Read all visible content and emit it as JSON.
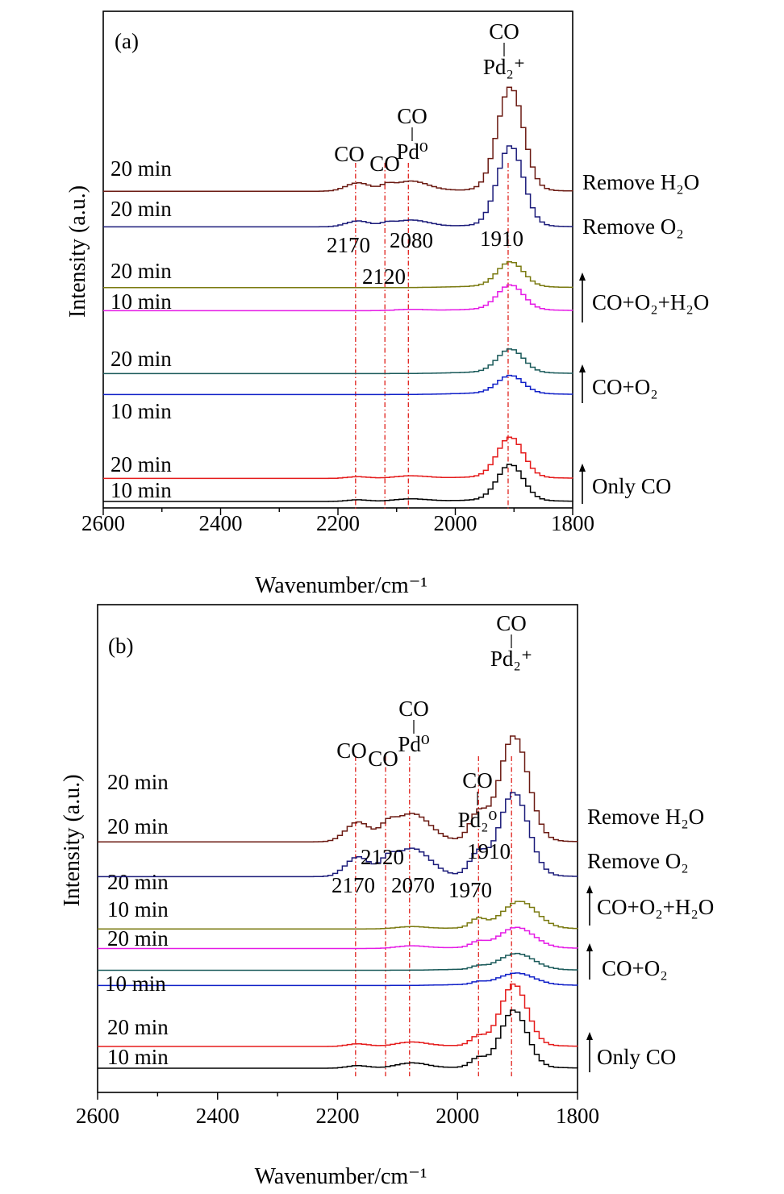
{
  "colors": {
    "axis": "#000000",
    "guide": "#e0201b",
    "min20_top": "#6b1a12",
    "min20_second": "#1b1b7a",
    "min20_cooh": "#7a7a10",
    "min10_cooh": "#e51be5",
    "min20_coo2": "#1a5a5a",
    "min10_coo2": "#1020c8",
    "min20_co": "#e51b1b",
    "min10_co": "#000000"
  },
  "chart_data": [
    {
      "type": "line",
      "panel_label": "(a)",
      "xlabel": "Wavenumber/cm⁻¹",
      "ylabel": "Intensity (a.u.)",
      "xlim": [
        2600,
        1800
      ],
      "x_ticks": [
        "2600",
        "2400",
        "2200",
        "2000",
        "1800"
      ],
      "x_reversed": true,
      "grid": false,
      "series": [
        {
          "key": "a_co10",
          "time_label": "10 min",
          "color_key": "min10_co",
          "baseline": 0.0,
          "peaks": [
            [
              1910,
              0.085,
              22
            ],
            [
              2080,
              0.006,
              28
            ],
            [
              2170,
              0.004,
              18
            ]
          ]
        },
        {
          "key": "a_co20",
          "time_label": "20 min",
          "color_key": "min20_co",
          "baseline": 0.055,
          "peaks": [
            [
              1910,
              0.095,
              22
            ],
            [
              2080,
              0.006,
              28
            ],
            [
              2170,
              0.004,
              18
            ]
          ]
        },
        {
          "key": "a_o210",
          "time_label": "10 min",
          "color_key": "min10_coo2",
          "baseline": 0.255,
          "peaks": [
            [
              1910,
              0.042,
              22
            ]
          ]
        },
        {
          "key": "a_o220",
          "time_label": "20 min",
          "color_key": "min20_coo2",
          "baseline": 0.305,
          "peaks": [
            [
              1910,
              0.055,
              22
            ]
          ]
        },
        {
          "key": "a_h2o10",
          "time_label": "10 min",
          "color_key": "min10_cooh",
          "baseline": 0.455,
          "peaks": [
            [
              1910,
              0.058,
              22
            ],
            [
              2080,
              0.003,
              25
            ]
          ]
        },
        {
          "key": "a_h2o20",
          "time_label": "20 min",
          "color_key": "min20_cooh",
          "baseline": 0.51,
          "peaks": [
            [
              1910,
              0.058,
              22
            ]
          ]
        },
        {
          "key": "a_ro2",
          "time_label": "20 min",
          "color_key": "min20_second",
          "baseline": 0.655,
          "peaks": [
            [
              1910,
              0.19,
              22
            ],
            [
              2080,
              0.016,
              30
            ],
            [
              2170,
              0.014,
              20
            ],
            [
              2120,
              0.006,
              10
            ]
          ]
        },
        {
          "key": "a_rh2o",
          "time_label": "20 min",
          "color_key": "min20_top",
          "baseline": 0.74,
          "peaks": [
            [
              1910,
              0.245,
              22
            ],
            [
              2080,
              0.024,
              30
            ],
            [
              2170,
              0.02,
              20
            ],
            [
              2120,
              0.01,
              10
            ]
          ]
        }
      ],
      "guides": [
        2170,
        2120,
        2080,
        1910
      ],
      "peak_labels": [
        {
          "text": "2170",
          "x": 2170
        },
        {
          "text": "2120",
          "x": 2120
        },
        {
          "text": "2080",
          "x": 2080
        },
        {
          "text": "1910",
          "x": 1910
        }
      ],
      "species_labels": [
        {
          "top": "CO",
          "bottom": "",
          "x": 2175
        },
        {
          "top": "CO",
          "bottom": "",
          "x": 2120
        },
        {
          "top": "CO",
          "bottom": "Pd⁰",
          "x": 2085
        },
        {
          "top": "CO",
          "bottom": "Pd₂⁺",
          "x": 1910
        }
      ],
      "conditions": [
        {
          "text": "Remove H₂O",
          "arrow": false
        },
        {
          "text": "Remove O₂",
          "arrow": false
        },
        {
          "text": "CO+O₂+H₂O",
          "arrow": true
        },
        {
          "text": "CO+O₂",
          "arrow": true
        },
        {
          "text": "Only CO",
          "arrow": true
        }
      ]
    },
    {
      "type": "line",
      "panel_label": "(b)",
      "xlabel": "Wavenumber/cm⁻¹",
      "ylabel": "Intensity (a.u.)",
      "xlim": [
        2600,
        1800
      ],
      "x_ticks": [
        "2600",
        "2400",
        "2200",
        "2000",
        "1800"
      ],
      "x_reversed": true,
      "grid": false,
      "series": [
        {
          "key": "b_co10",
          "time_label": "10 min",
          "color_key": "min10_co",
          "baseline": 0.0,
          "peaks": [
            [
              1910,
              0.13,
              22
            ],
            [
              1970,
              0.02,
              12
            ],
            [
              2080,
              0.012,
              26
            ],
            [
              2170,
              0.006,
              18
            ]
          ]
        },
        {
          "key": "b_co20",
          "time_label": "20 min",
          "color_key": "min20_co",
          "baseline": 0.05,
          "peaks": [
            [
              1910,
              0.14,
              22
            ],
            [
              1970,
              0.02,
              12
            ],
            [
              2080,
              0.01,
              26
            ],
            [
              2170,
              0.006,
              18
            ]
          ]
        },
        {
          "key": "b_o210",
          "time_label": "10 min",
          "color_key": "min10_coo2",
          "baseline": 0.19,
          "peaks": [
            [
              1905,
              0.025,
              28
            ],
            [
              1970,
              0.005,
              10
            ]
          ]
        },
        {
          "key": "b_o220",
          "time_label": "20 min",
          "color_key": "min20_coo2",
          "baseline": 0.225,
          "peaks": [
            [
              1905,
              0.035,
              28
            ],
            [
              1970,
              0.006,
              10
            ]
          ]
        },
        {
          "key": "b_h2o10",
          "time_label": "10 min",
          "color_key": "min10_cooh",
          "baseline": 0.275,
          "peaks": [
            [
              1905,
              0.045,
              28
            ],
            [
              1970,
              0.012,
              12
            ],
            [
              2080,
              0.006,
              25
            ]
          ]
        },
        {
          "key": "b_h2o20",
          "time_label": "20 min",
          "color_key": "min20_cooh",
          "baseline": 0.32,
          "peaks": [
            [
              1900,
              0.06,
              28
            ],
            [
              1970,
              0.02,
              12
            ],
            [
              2080,
              0.005,
              25
            ]
          ]
        },
        {
          "key": "b_ro2",
          "time_label": "20 min",
          "color_key": "min20_second",
          "baseline": 0.44,
          "peaks": [
            [
              1910,
              0.19,
              24
            ],
            [
              1970,
              0.05,
              14
            ],
            [
              2080,
              0.065,
              30
            ],
            [
              2170,
              0.045,
              20
            ],
            [
              2120,
              0.025,
              12
            ]
          ]
        },
        {
          "key": "b_rh2o",
          "time_label": "20 min",
          "color_key": "min20_top",
          "baseline": 0.52,
          "peaks": [
            [
              1910,
              0.24,
              24
            ],
            [
              1970,
              0.06,
              14
            ],
            [
              2080,
              0.065,
              30
            ],
            [
              2170,
              0.045,
              20
            ],
            [
              2120,
              0.025,
              12
            ]
          ]
        }
      ],
      "guides": [
        2170,
        2120,
        2080,
        1965,
        1910
      ],
      "peak_labels": [
        {
          "text": "2120",
          "x": 2120
        },
        {
          "text": "1910",
          "x": 1910
        },
        {
          "text": "2170",
          "x": 2170
        },
        {
          "text": "2070",
          "x": 2070
        },
        {
          "text": "1970",
          "x": 1970
        }
      ],
      "species_labels": [
        {
          "top": "CO",
          "bottom": "",
          "x": 2175
        },
        {
          "top": "CO",
          "bottom": "",
          "x": 2125
        },
        {
          "top": "CO",
          "bottom": "Pd⁰",
          "x": 2085
        },
        {
          "top": "CO",
          "bottom": "Pd₂⁰",
          "x": 1970
        },
        {
          "top": "CO",
          "bottom": "Pd₂⁺",
          "x": 1910
        }
      ],
      "conditions": [
        {
          "text": "Remove H₂O",
          "arrow": false
        },
        {
          "text": "Remove O₂",
          "arrow": false
        },
        {
          "text": "CO+O₂+H₂O",
          "arrow": true
        },
        {
          "text": "CO+O₂",
          "arrow": true
        },
        {
          "text": "Only CO",
          "arrow": true
        }
      ]
    }
  ]
}
